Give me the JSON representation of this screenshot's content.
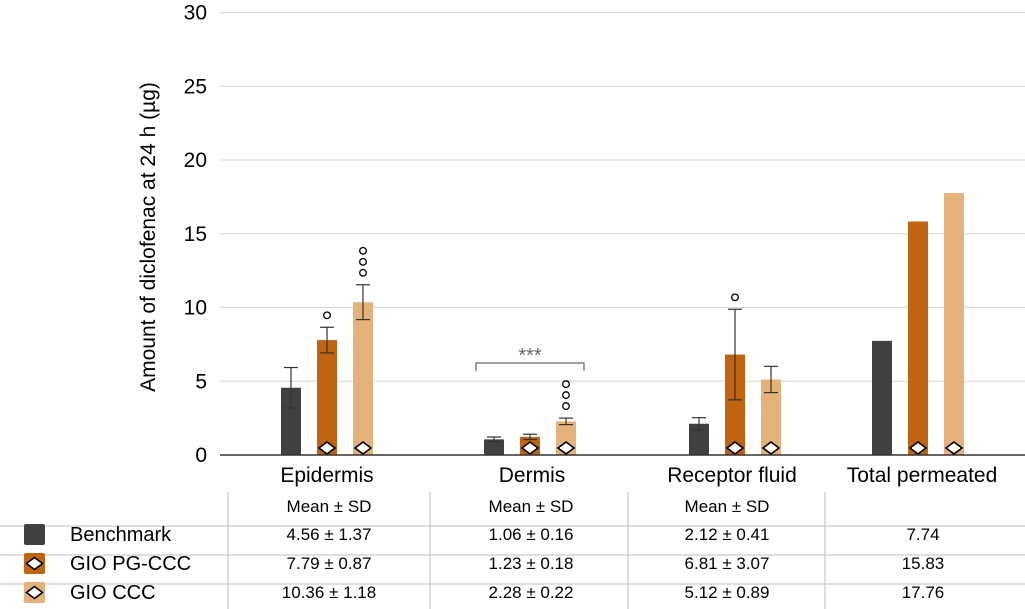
{
  "chart_data": {
    "type": "bar",
    "ylabel": "Amount of diclofenac at 24 h (µg)",
    "ylim": [
      0,
      30
    ],
    "yticks": [
      0,
      5,
      10,
      15,
      20,
      25,
      30
    ],
    "grid": true,
    "categories": [
      "Epidermis",
      "Dermis",
      "Receptor fluid",
      "Total permeated"
    ],
    "series": [
      {
        "name": "Benchmark",
        "color": "#404040",
        "marker": "none",
        "values": [
          4.56,
          1.06,
          2.12,
          7.74
        ],
        "errors": [
          1.37,
          0.16,
          0.41,
          null
        ]
      },
      {
        "name": "GIO PG-CCC",
        "color": "#c0640f",
        "marker": "diamond",
        "values": [
          7.79,
          1.23,
          6.81,
          15.83
        ],
        "errors": [
          0.87,
          0.18,
          3.07,
          null
        ]
      },
      {
        "name": "GIO CCC",
        "color": "#e6b27b",
        "marker": "diamond",
        "values": [
          10.36,
          2.28,
          5.12,
          17.76
        ],
        "errors": [
          1.18,
          0.22,
          0.89,
          null
        ]
      }
    ],
    "significance": [
      {
        "category": 0,
        "series": 1,
        "count": 1
      },
      {
        "category": 0,
        "series": 2,
        "count": 3
      },
      {
        "category": 1,
        "series": 2,
        "count": 3
      },
      {
        "category": 2,
        "series": 1,
        "count": 1
      }
    ],
    "bracket": {
      "category": 1,
      "from_series": 0,
      "to_series": 2,
      "label": "***"
    }
  },
  "table": {
    "header": [
      "Mean ± SD",
      "Mean ± SD",
      "Mean ± SD",
      ""
    ],
    "rows": [
      {
        "label": "Benchmark",
        "cells": [
          "4.56 ± 1.37",
          "1.06 ± 0.16",
          "2.12  ± 0.41",
          "7.74"
        ]
      },
      {
        "label": "GIO PG-CCC",
        "cells": [
          "7.79 ± 0.87",
          "1.23 ± 0.18",
          "6.81 ± 3.07",
          "15.83"
        ]
      },
      {
        "label": "GIO CCC",
        "cells": [
          "10.36 ± 1.18",
          "2.28 ± 0.22",
          "5.12 ± 0.89",
          "17.76"
        ]
      }
    ]
  }
}
